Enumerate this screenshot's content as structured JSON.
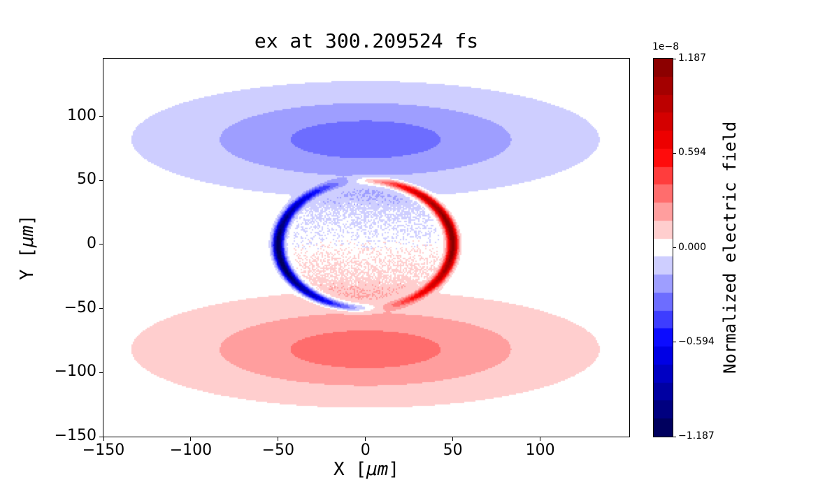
{
  "figure": {
    "title": "ex at 300.209524 fs",
    "background": "#ffffff"
  },
  "axes": {
    "xlabel": {
      "pre": "X [",
      "math": "μm",
      "post": "]"
    },
    "ylabel": {
      "pre": "Y [",
      "math": "μm",
      "post": "]"
    },
    "xlim": [
      -150,
      151
    ],
    "ylim": [
      -150,
      145
    ],
    "xticks": [
      {
        "value": -150,
        "label": "−150"
      },
      {
        "value": -100,
        "label": "−100"
      },
      {
        "value": -50,
        "label": "−50"
      },
      {
        "value": 0,
        "label": "0"
      },
      {
        "value": 50,
        "label": "50"
      },
      {
        "value": 100,
        "label": "100"
      }
    ],
    "yticks": [
      {
        "value": 100,
        "label": "100"
      },
      {
        "value": 50,
        "label": "50"
      },
      {
        "value": 0,
        "label": "0"
      },
      {
        "value": -50,
        "label": "−50"
      },
      {
        "value": -100,
        "label": "−100"
      },
      {
        "value": -150,
        "label": "−150"
      }
    ]
  },
  "colorbar": {
    "label": "Normalized electric field",
    "scale_label": "1e−8",
    "vmin": -1.187,
    "vmax": 1.187,
    "n_bands": 21,
    "colormap": "seismic",
    "colormap_anchors": [
      [
        0.0,
        [
          0.0,
          0.0,
          0.3
        ]
      ],
      [
        0.25,
        [
          0.0,
          0.0,
          1.0
        ]
      ],
      [
        0.5,
        [
          1.0,
          1.0,
          1.0
        ]
      ],
      [
        0.75,
        [
          1.0,
          0.0,
          0.0
        ]
      ],
      [
        1.0,
        [
          0.5,
          0.0,
          0.0
        ]
      ]
    ],
    "ticks": [
      {
        "value": 1.187,
        "label": "1.187"
      },
      {
        "value": 0.594,
        "label": "0.594"
      },
      {
        "value": 0.0,
        "label": "0.000"
      },
      {
        "value": -0.594,
        "label": "−0.594"
      },
      {
        "value": -1.187,
        "label": "−1.187"
      }
    ]
  },
  "chart_data": {
    "type": "heatmap",
    "title": "ex at 300.209524 fs",
    "xlabel": "X [μm]",
    "ylabel": "Y [μm]",
    "colorbar_label": "Normalized electric field",
    "scale_factor": "1e-8",
    "colormap": "seismic",
    "vmin": -1.187,
    "vmax": 1.187,
    "xlim": [
      -150,
      151
    ],
    "ylim": [
      -150,
      145
    ],
    "xtick_values": [
      -150,
      -100,
      -50,
      0,
      50,
      100
    ],
    "ytick_values": [
      100,
      50,
      0,
      -50,
      -100,
      -150
    ],
    "colorbar_tick_values": [
      1.187,
      0.594,
      0.0,
      -0.594,
      -1.187
    ],
    "n_levels": 21,
    "field_model": {
      "description": "ex field snapshot: broad outer lobes (negative/blue above, positive/red below) centered near y=+-82, plus a sharp ring of radius 50 um with strong negative (blue) arc on the left and strong positive (red) arc on the right, speckled weak field inside the ring",
      "outer_lobes": {
        "amplitude": 0.34,
        "center_y": 82,
        "sigma_x": 100,
        "sigma_y": 34
      },
      "ring": {
        "radius": 50,
        "width": 3,
        "amplitude": 1.187,
        "phase": 0.17
      },
      "interior": {
        "radius": 46,
        "dipole_amplitude": 0.12,
        "noise_amplitude": 0.07,
        "noise_seed": 42
      }
    }
  }
}
